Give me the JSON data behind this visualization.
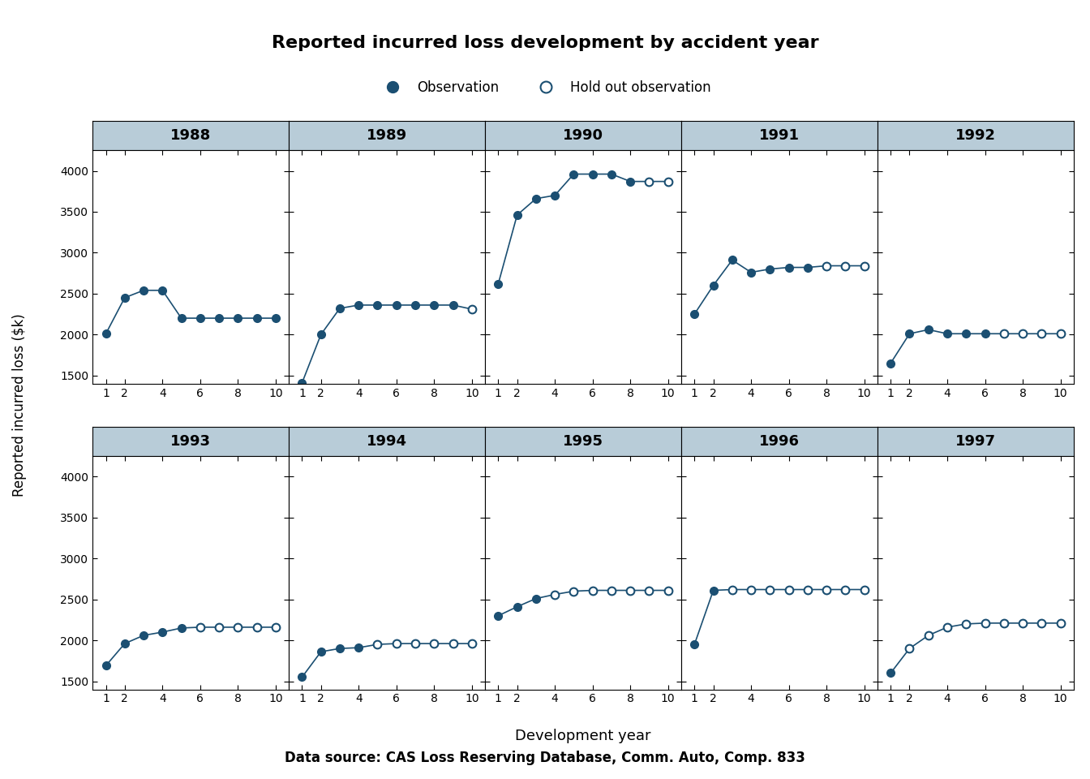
{
  "title": "Reported incurred loss development by accident year",
  "ylabel": "Reported incurred loss ($k)",
  "xlabel": "Development year",
  "datasource": "Data source: CAS Loss Reserving Database, Comm. Auto, Comp. 833",
  "color_filled": "#1b4f72",
  "header_color": "#b8ccd8",
  "years": [
    "1988",
    "1989",
    "1990",
    "1991",
    "1992",
    "1993",
    "1994",
    "1995",
    "1996",
    "1997"
  ],
  "series": {
    "1988": {
      "x": [
        1,
        2,
        3,
        4,
        5,
        6,
        7,
        8,
        9,
        10
      ],
      "y": [
        2010,
        2450,
        2540,
        2540,
        2200,
        2200,
        2200,
        2200,
        2200,
        2200
      ],
      "n_filled": 10
    },
    "1989": {
      "x": [
        1,
        2,
        3,
        4,
        5,
        6,
        7,
        8,
        9,
        10
      ],
      "y": [
        1410,
        2000,
        2320,
        2360,
        2360,
        2360,
        2360,
        2360,
        2360,
        2310
      ],
      "n_filled": 9
    },
    "1990": {
      "x": [
        1,
        2,
        3,
        4,
        5,
        6,
        7,
        8,
        9,
        10
      ],
      "y": [
        2620,
        3460,
        3660,
        3700,
        3960,
        3960,
        3960,
        3870,
        3870,
        3870
      ],
      "n_filled": 8
    },
    "1991": {
      "x": [
        1,
        2,
        3,
        4,
        5,
        6,
        7,
        8,
        9,
        10
      ],
      "y": [
        2250,
        2600,
        2910,
        2760,
        2800,
        2820,
        2820,
        2840,
        2840,
        2840
      ],
      "n_filled": 7
    },
    "1992": {
      "x": [
        1,
        2,
        3,
        4,
        5,
        6,
        7,
        8,
        9,
        10
      ],
      "y": [
        1650,
        2010,
        2060,
        2010,
        2010,
        2010,
        2010,
        2010,
        2010,
        2010
      ],
      "n_filled": 6
    },
    "1993": {
      "x": [
        1,
        2,
        3,
        4,
        5,
        6,
        7,
        8,
        9,
        10
      ],
      "y": [
        1690,
        1960,
        2060,
        2100,
        2150,
        2160,
        2160,
        2160,
        2160,
        2160
      ],
      "n_filled": 5
    },
    "1994": {
      "x": [
        1,
        2,
        3,
        4,
        5,
        6,
        7,
        8,
        9,
        10
      ],
      "y": [
        1550,
        1860,
        1900,
        1910,
        1950,
        1960,
        1960,
        1960,
        1960,
        1960
      ],
      "n_filled": 4
    },
    "1995": {
      "x": [
        1,
        2,
        3,
        4,
        5,
        6,
        7,
        8,
        9,
        10
      ],
      "y": [
        2300,
        2410,
        2510,
        2560,
        2600,
        2610,
        2610,
        2610,
        2610,
        2610
      ],
      "n_filled": 3
    },
    "1996": {
      "x": [
        1,
        2,
        3,
        4,
        5,
        6,
        7,
        8,
        9,
        10
      ],
      "y": [
        1950,
        2610,
        2620,
        2620,
        2620,
        2620,
        2620,
        2620,
        2620,
        2620
      ],
      "n_filled": 2
    },
    "1997": {
      "x": [
        1,
        2,
        3,
        4,
        5,
        6,
        7,
        8,
        9,
        10
      ],
      "y": [
        1600,
        1900,
        2060,
        2160,
        2200,
        2210,
        2210,
        2210,
        2210,
        2210
      ],
      "n_filled": 1
    }
  },
  "ylim": [
    1400,
    4250
  ],
  "yticks": [
    1500,
    2000,
    2500,
    3000,
    3500,
    4000
  ],
  "xticks": [
    1,
    2,
    4,
    6,
    8,
    10
  ]
}
